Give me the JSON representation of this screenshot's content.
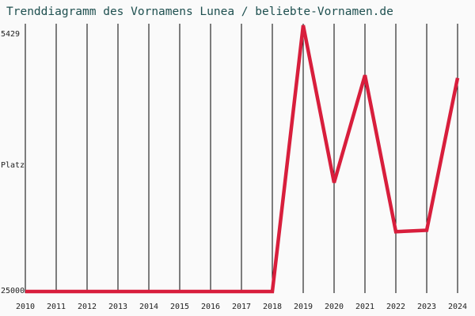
{
  "title": "Trenddiagramm des Vornamens Lunea / beliebte-Vornamen.de",
  "colors": {
    "background": "#fafafa",
    "title": "#1e4f4f",
    "gridline": "#000000",
    "series": "#d81e3c"
  },
  "chart_data": {
    "type": "line",
    "title": "Trenddiagramm des Vornamens Lunea / beliebte-Vornamen.de",
    "xlabel": "",
    "ylabel": "Platz",
    "y_top_label": "5429",
    "y_bottom_label": "25000",
    "ylim": [
      25000,
      5429
    ],
    "y_inverted": true,
    "grid": "vertical",
    "categories": [
      "2010",
      "2011",
      "2012",
      "2013",
      "2014",
      "2015",
      "2016",
      "2017",
      "2018",
      "2019",
      "2020",
      "2021",
      "2022",
      "2023",
      "2024"
    ],
    "series": [
      {
        "values": [
          25000,
          25000,
          25000,
          25000,
          25000,
          25000,
          25000,
          25000,
          25000,
          5429,
          17000,
          9100,
          20600,
          20500,
          9300
        ]
      }
    ]
  }
}
